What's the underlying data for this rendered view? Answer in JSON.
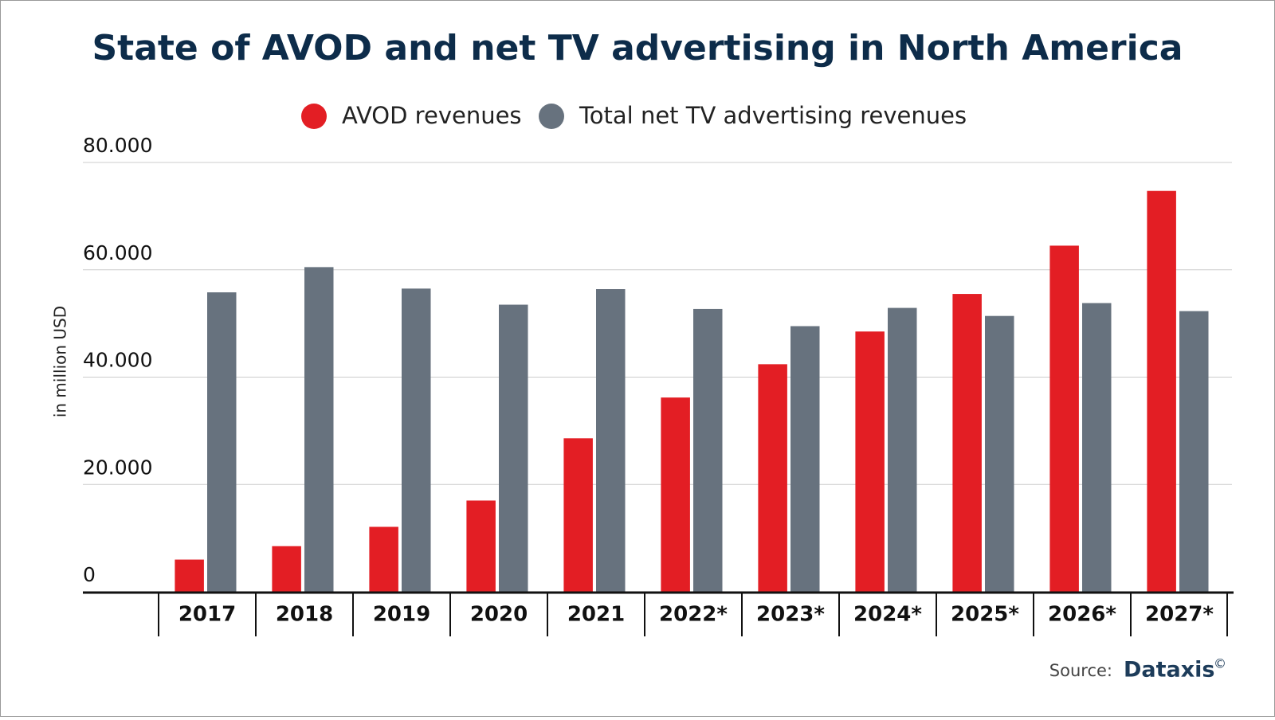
{
  "chart_data": {
    "type": "bar",
    "title": "State of AVOD and net TV advertising in North America",
    "y_label": "in million USD",
    "categories": [
      "2017",
      "2018",
      "2019",
      "2020",
      "2021",
      "2022*",
      "2023*",
      "2024*",
      "2025*",
      "2026*",
      "2027*"
    ],
    "series": [
      {
        "name": "AVOD revenues",
        "color": "#e31e24",
        "values": [
          6000,
          8500,
          12100,
          17000,
          28600,
          36200,
          42400,
          48500,
          55500,
          64500,
          74700
        ]
      },
      {
        "name": "Total net TV advertising revenues",
        "color": "#67727e",
        "values": [
          55800,
          60500,
          56500,
          53500,
          56400,
          52700,
          49500,
          52900,
          51400,
          53800,
          52300
        ]
      }
    ],
    "ylim": [
      0,
      80000
    ],
    "yticks": [
      0,
      {
        "value": 20000,
        "label": "20.000"
      },
      {
        "value": 40000,
        "label": "40.000"
      },
      {
        "value": 60000,
        "label": "60.000"
      },
      {
        "value": 80000,
        "label": "80.000"
      }
    ],
    "grid": true,
    "legend": "top",
    "source": {
      "label": "Source:",
      "name": "Dataxis",
      "mark": "©"
    }
  }
}
